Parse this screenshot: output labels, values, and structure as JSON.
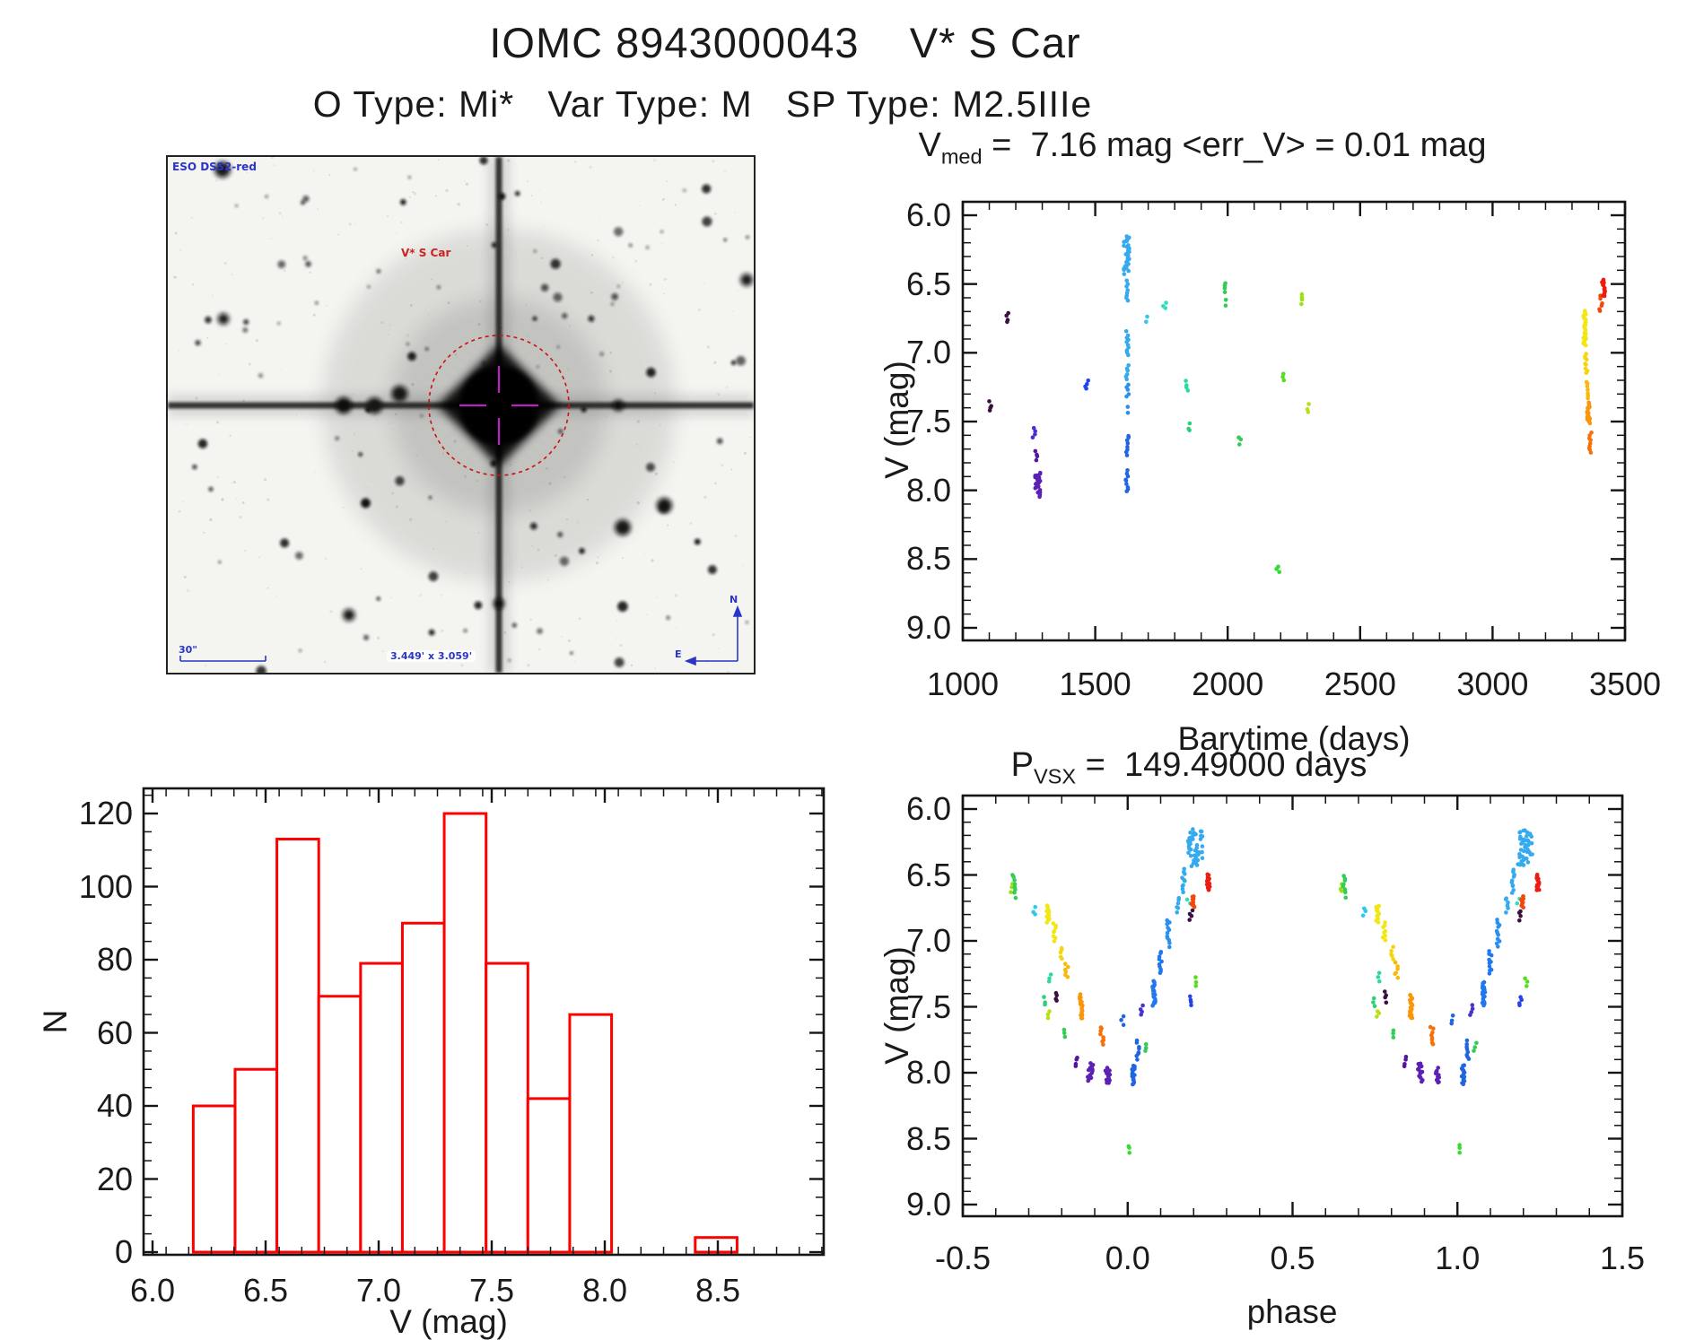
{
  "page": {
    "title": "IOMC 8943000043    V* S Car",
    "subtitle": "O Type: Mi*   Var Type: M   SP Type: M2.5IIIe",
    "background": "#ffffff",
    "text_color": "#1a1a1a"
  },
  "finder": {
    "survey_label": "ESO DSS2-red",
    "star_label": "V* S Car",
    "scale_label": "30\"",
    "fov_label": "3.449' x 3.059'",
    "compass_north": "N",
    "compass_east": "E",
    "annotation_color": "#2a35c8",
    "circle_color": "#cc1111",
    "crosshair_color": "#bb22bb"
  },
  "chart_data": [
    {
      "id": "lightcurve",
      "type": "scatter",
      "title": {
        "base": "V",
        "sub": "med",
        "rest": " =  7.16 mag <err_V> = 0.01 mag"
      },
      "xlabel": "Barytime (days)",
      "ylabel": "V (mag)",
      "xlim": [
        1000,
        3500
      ],
      "ylim": [
        9.0,
        6.0
      ],
      "y_axis_inverted": true,
      "grid": false,
      "xticks": [
        1000,
        1500,
        2000,
        2500,
        3000,
        3500
      ],
      "xtick_labels": [
        "1000",
        "1500",
        "2000",
        "2500",
        "3000",
        "3500"
      ],
      "yticks": [
        6.0,
        6.5,
        7.0,
        7.5,
        8.0,
        8.5,
        9.0
      ],
      "ytick_labels": [
        "6.0",
        "6.5",
        "7.0",
        "7.5",
        "8.0",
        "8.5",
        "9.0"
      ],
      "x_minor": 100,
      "y_minor": 0.1,
      "clusters": [
        {
          "x": 1105,
          "v1": 7.36,
          "v2": 7.42,
          "c": "#3b0f3f"
        },
        {
          "x": 1169,
          "v1": 6.71,
          "v2": 6.78,
          "c": "#3b0f3f"
        },
        {
          "x": 1268,
          "v1": 7.55,
          "v2": 7.62,
          "c": "#4633cc"
        },
        {
          "x": 1276,
          "v1": 7.72,
          "v2": 7.78,
          "c": "#55159e"
        },
        {
          "x": 1283,
          "v1": 7.87,
          "v2": 8.04,
          "c": "#5b21b5",
          "xw": 3,
          "d": 2
        },
        {
          "x": 1468,
          "v1": 7.2,
          "v2": 7.26,
          "c": "#2244ee"
        },
        {
          "x": 1618,
          "v1": 6.15,
          "v2": 6.42,
          "c": "#35aaee",
          "xw": 3,
          "d": 2
        },
        {
          "x": 1620,
          "v1": 6.48,
          "v2": 6.62,
          "c": "#35aaee"
        },
        {
          "x": 1620,
          "v1": 6.85,
          "v2": 7.02,
          "c": "#35aaee"
        },
        {
          "x": 1620,
          "v1": 7.09,
          "v2": 7.19,
          "c": "#35aaee"
        },
        {
          "x": 1621,
          "v1": 7.23,
          "v2": 7.32,
          "c": "#2b8fee"
        },
        {
          "x": 1620,
          "v1": 7.4,
          "v2": 7.43,
          "c": "#2b8fee"
        },
        {
          "x": 1620,
          "v1": 7.6,
          "v2": 7.74,
          "c": "#1f66e0"
        },
        {
          "x": 1619,
          "v1": 7.86,
          "v2": 8.01,
          "c": "#1f66e0"
        },
        {
          "x": 1694,
          "v1": 6.73,
          "v2": 6.77,
          "c": "#2ec9e8"
        },
        {
          "x": 1762,
          "v1": 6.63,
          "v2": 6.68,
          "c": "#2ee0c0"
        },
        {
          "x": 1847,
          "v1": 7.21,
          "v2": 7.27,
          "c": "#2ed99b"
        },
        {
          "x": 1857,
          "v1": 7.52,
          "v2": 7.57,
          "c": "#2ecf7a"
        },
        {
          "x": 1989,
          "v1": 6.49,
          "v2": 6.56,
          "c": "#33cc55"
        },
        {
          "x": 1990,
          "v1": 6.62,
          "v2": 6.66,
          "c": "#33cc55"
        },
        {
          "x": 2047,
          "v1": 7.61,
          "v2": 7.66,
          "c": "#33cc55"
        },
        {
          "x": 2189,
          "v1": 8.55,
          "v2": 8.6,
          "c": "#33dd33"
        },
        {
          "x": 2213,
          "v1": 7.15,
          "v2": 7.2,
          "c": "#55dd22"
        },
        {
          "x": 2284,
          "v1": 6.57,
          "v2": 6.64,
          "c": "#99e011"
        },
        {
          "x": 2301,
          "v1": 7.38,
          "v2": 7.43,
          "c": "#b8e014"
        },
        {
          "x": 3348,
          "v1": 6.7,
          "v2": 6.95,
          "c": "#f2e713",
          "d": 2
        },
        {
          "x": 3353,
          "v1": 7.0,
          "v2": 7.15,
          "c": "#f5d410"
        },
        {
          "x": 3357,
          "v1": 7.21,
          "v2": 7.33,
          "c": "#f8b90d"
        },
        {
          "x": 3362,
          "v1": 7.36,
          "v2": 7.52,
          "c": "#fa9609",
          "d": 2
        },
        {
          "x": 3368,
          "v1": 7.58,
          "v2": 7.73,
          "c": "#f87107"
        },
        {
          "x": 3409,
          "v1": 6.59,
          "v2": 6.7,
          "c": "#f4480a"
        },
        {
          "x": 3419,
          "v1": 6.47,
          "v2": 6.59,
          "c": "#ee1c10",
          "d": 2
        }
      ]
    },
    {
      "id": "histogram",
      "type": "bar",
      "xlabel": "V (mag)",
      "ylabel": "N",
      "xlim": [
        5.96,
        8.97
      ],
      "ylim": [
        0,
        127
      ],
      "bar_color": "#ff0000",
      "grid": false,
      "xticks": [
        6.0,
        6.5,
        7.0,
        7.5,
        8.0,
        8.5
      ],
      "xtick_labels": [
        "6.0",
        "6.5",
        "7.0",
        "7.5",
        "8.0",
        "8.5"
      ],
      "yticks": [
        0,
        20,
        40,
        60,
        80,
        100,
        120
      ],
      "ytick_labels": [
        "0",
        "20",
        "40",
        "60",
        "80",
        "100",
        "120"
      ],
      "x_minor": 0.1,
      "y_minor": 5,
      "bin_width": 0.185,
      "bins": [
        {
          "x0": 6.18,
          "x1": 6.365,
          "n": 40
        },
        {
          "x0": 6.365,
          "x1": 6.55,
          "n": 50
        },
        {
          "x0": 6.55,
          "x1": 6.735,
          "n": 113
        },
        {
          "x0": 6.735,
          "x1": 6.92,
          "n": 70
        },
        {
          "x0": 6.92,
          "x1": 7.105,
          "n": 79
        },
        {
          "x0": 7.105,
          "x1": 7.29,
          "n": 90
        },
        {
          "x0": 7.29,
          "x1": 7.475,
          "n": 120
        },
        {
          "x0": 7.475,
          "x1": 7.66,
          "n": 79
        },
        {
          "x0": 7.66,
          "x1": 7.845,
          "n": 42
        },
        {
          "x0": 7.845,
          "x1": 8.03,
          "n": 65
        },
        {
          "x0": 8.4,
          "x1": 8.585,
          "n": 4
        }
      ]
    },
    {
      "id": "phase",
      "type": "scatter",
      "title": {
        "base": "P",
        "sub": "VSX",
        "rest": " =  149.49000 days"
      },
      "xlabel": "phase",
      "ylabel": "V (mag)",
      "xlim": [
        -0.5,
        1.5
      ],
      "ylim": [
        9.0,
        6.0
      ],
      "y_axis_inverted": true,
      "grid": false,
      "duplicate_offset": 1.0,
      "xticks": [
        -0.5,
        0.0,
        0.5,
        1.0,
        1.5
      ],
      "xtick_labels": [
        "-0.5",
        "0.0",
        "0.5",
        "1.0",
        "1.5"
      ],
      "yticks": [
        6.0,
        6.5,
        7.0,
        7.5,
        8.0,
        8.5,
        9.0
      ],
      "ytick_labels": [
        "6.0",
        "6.5",
        "7.0",
        "7.5",
        "8.0",
        "8.5",
        "9.0"
      ],
      "x_minor": 0.1,
      "y_minor": 0.1,
      "clusters": [
        {
          "x": -0.352,
          "v1": 6.57,
          "v2": 6.63,
          "c": "#99e011"
        },
        {
          "x": -0.345,
          "v1": 6.5,
          "v2": 6.61,
          "c": "#33cc55"
        },
        {
          "x": -0.342,
          "v1": 6.63,
          "v2": 6.67,
          "c": "#33cc55"
        },
        {
          "x": -0.283,
          "v1": 6.75,
          "v2": 6.8,
          "c": "#2ec9e8"
        },
        {
          "x": -0.242,
          "v1": 6.73,
          "v2": 6.86,
          "c": "#f2e713",
          "d": 2
        },
        {
          "x": -0.222,
          "v1": 6.86,
          "v2": 7.0,
          "c": "#f2e713"
        },
        {
          "x": -0.237,
          "v1": 7.25,
          "v2": 7.31,
          "c": "#2ed99b"
        },
        {
          "x": -0.255,
          "v1": 7.43,
          "v2": 7.49,
          "c": "#2ecf7a"
        },
        {
          "x": -0.199,
          "v1": 7.05,
          "v2": 7.14,
          "c": "#f5d410"
        },
        {
          "x": -0.185,
          "v1": 7.17,
          "v2": 7.28,
          "c": "#f8b90d"
        },
        {
          "x": -0.217,
          "v1": 7.39,
          "v2": 7.46,
          "c": "#3b0f3f"
        },
        {
          "x": -0.241,
          "v1": 7.53,
          "v2": 7.58,
          "c": "#b8e014"
        },
        {
          "x": -0.141,
          "v1": 7.41,
          "v2": 7.59,
          "c": "#fa9609",
          "d": 2
        },
        {
          "x": -0.195,
          "v1": 7.68,
          "v2": 7.73,
          "c": "#33cc55"
        },
        {
          "x": -0.078,
          "v1": 7.65,
          "v2": 7.79,
          "c": "#f87107"
        },
        {
          "x": -0.157,
          "v1": 7.88,
          "v2": 7.95,
          "c": "#55159e"
        },
        {
          "x": -0.113,
          "v1": 7.93,
          "v2": 8.06,
          "c": "#5b21b5",
          "xw": 3,
          "d": 2
        },
        {
          "x": -0.06,
          "v1": 7.97,
          "v2": 8.08,
          "c": "#5b21b5",
          "xw": 3,
          "d": 2
        },
        {
          "x": 0.017,
          "v1": 7.94,
          "v2": 8.09,
          "c": "#1f66e0",
          "d": 2
        },
        {
          "x": 0.031,
          "v1": 7.76,
          "v2": 7.9,
          "c": "#1f66e0"
        },
        {
          "x": -0.015,
          "v1": 7.57,
          "v2": 7.63,
          "c": "#1f66e0"
        },
        {
          "x": 0.042,
          "v1": 7.49,
          "v2": 7.56,
          "c": "#4633cc"
        },
        {
          "x": 0.053,
          "v1": 7.78,
          "v2": 7.83,
          "c": "#33cc55"
        },
        {
          "x": 0.08,
          "v1": 7.31,
          "v2": 7.49,
          "c": "#2277ee",
          "d": 2
        },
        {
          "x": 0.099,
          "v1": 7.08,
          "v2": 7.25,
          "c": "#2277ee"
        },
        {
          "x": 0.123,
          "v1": 6.84,
          "v2": 7.04,
          "c": "#2b8fee"
        },
        {
          "x": 0.151,
          "v1": 6.67,
          "v2": 6.78,
          "c": "#35aaee"
        },
        {
          "x": 0.169,
          "v1": 6.46,
          "v2": 6.63,
          "c": "#35aaee"
        },
        {
          "x": 0.205,
          "v1": 6.16,
          "v2": 6.43,
          "c": "#35aaee",
          "xw": 8,
          "d": 3
        },
        {
          "x": 0.19,
          "v1": 7.42,
          "v2": 7.49,
          "c": "#2244ee"
        },
        {
          "x": 0.208,
          "v1": 7.28,
          "v2": 7.34,
          "c": "#55dd22"
        },
        {
          "x": 0.185,
          "v1": 6.68,
          "v2": 6.72,
          "c": "#2ee0c0"
        },
        {
          "x": 0.192,
          "v1": 6.77,
          "v2": 6.84,
          "c": "#3b0f3f"
        },
        {
          "x": 0.198,
          "v1": 6.66,
          "v2": 6.75,
          "c": "#f4480a",
          "d": 2
        },
        {
          "x": 0.245,
          "v1": 6.5,
          "v2": 6.62,
          "c": "#ee1c10",
          "d": 2
        },
        {
          "x": 0.002,
          "v1": 8.55,
          "v2": 8.6,
          "c": "#33dd33"
        }
      ]
    }
  ]
}
